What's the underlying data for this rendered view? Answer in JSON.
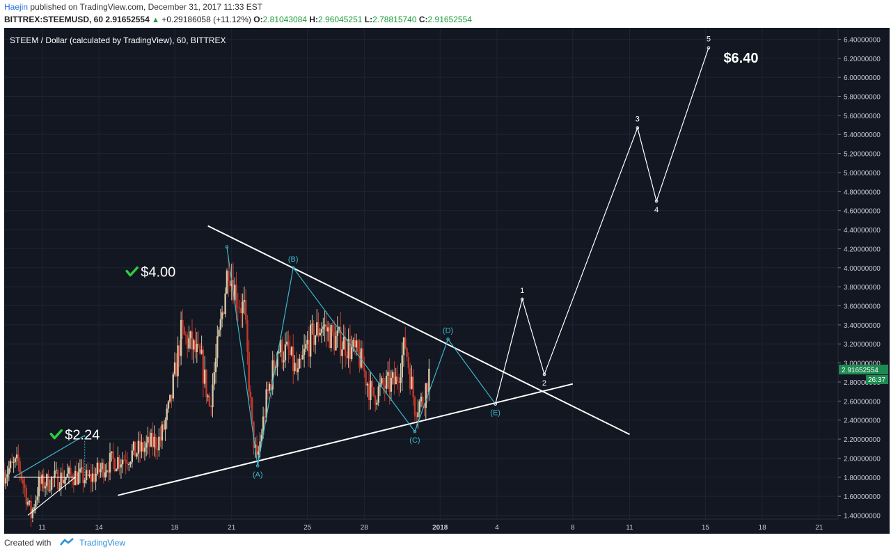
{
  "header": {
    "author": "Haejin",
    "published": "published on TradingView.com, December 31, 2017 11:33 EST",
    "symbol": "BITTREX:STEEMUSD, 60",
    "last": "2.91652554",
    "change": "+0.29186058 (+11.12%)",
    "o_label": "O:",
    "o_value": "2.81043084",
    "h_label": "H:",
    "h_value": "2.96045251",
    "l_label": "L:",
    "l_value": "2.78815740",
    "c_label": "C:",
    "c_value": "2.91652554"
  },
  "footer": {
    "created_with": "Created with",
    "brand": "TradingView"
  },
  "colors": {
    "background": "#131722",
    "grid": "#1e2433",
    "candle_up": "#d6c8a8",
    "candle_down": "#c0392b",
    "wave_abc": "#3bb9c9",
    "impulse": "#ffffff",
    "check": "#2ecc40",
    "price_tag": "#1e8a52"
  },
  "chart_data": {
    "type": "candlestick",
    "title": "STEEM / Dollar (calculated by TradingView), 60, BITTREX",
    "y_axis": {
      "min": 1.36,
      "max": 6.52,
      "ticks": [
        "6.40000000",
        "6.20000000",
        "6.00000000",
        "5.80000000",
        "5.60000000",
        "5.40000000",
        "5.20000000",
        "5.00000000",
        "4.80000000",
        "4.60000000",
        "4.40000000",
        "4.20000000",
        "4.00000000",
        "3.80000000",
        "3.60000000",
        "3.40000000",
        "3.20000000",
        "3.00000000",
        "2.80000000",
        "2.60000000",
        "2.40000000",
        "2.20000000",
        "2.00000000",
        "1.80000000",
        "1.60000000",
        "1.40000000"
      ]
    },
    "x_axis": {
      "range": [
        "2017-12-09",
        "2018-01-22"
      ],
      "ticks": [
        {
          "label": "11",
          "date": "2017-12-11"
        },
        {
          "label": "14",
          "date": "2017-12-14"
        },
        {
          "label": "18",
          "date": "2017-12-18"
        },
        {
          "label": "21",
          "date": "2017-12-21"
        },
        {
          "label": "25",
          "date": "2017-12-25"
        },
        {
          "label": "28",
          "date": "2017-12-28"
        },
        {
          "label": "2018",
          "date": "2018-01-01"
        },
        {
          "label": "4",
          "date": "2018-01-04"
        },
        {
          "label": "8",
          "date": "2018-01-08"
        },
        {
          "label": "11",
          "date": "2018-01-11"
        },
        {
          "label": "15",
          "date": "2018-01-15"
        },
        {
          "label": "18",
          "date": "2018-01-18"
        },
        {
          "label": "21",
          "date": "2018-01-21"
        }
      ]
    },
    "price_anchors": [
      {
        "x": "2017-12-09T00:00",
        "y": 1.85
      },
      {
        "x": "2017-12-09T18:00",
        "y": 1.95
      },
      {
        "x": "2017-12-10T10:00",
        "y": 1.4
      },
      {
        "x": "2017-12-10T20:00",
        "y": 1.72
      },
      {
        "x": "2017-12-11T16:00",
        "y": 1.78
      },
      {
        "x": "2017-12-12T16:00",
        "y": 1.82
      },
      {
        "x": "2017-12-13T12:00",
        "y": 1.78
      },
      {
        "x": "2017-12-14T12:00",
        "y": 1.95
      },
      {
        "x": "2017-12-15T12:00",
        "y": 2.02
      },
      {
        "x": "2017-12-16T12:00",
        "y": 2.12
      },
      {
        "x": "2017-12-17T06:00",
        "y": 2.2
      },
      {
        "x": "2017-12-17T18:00",
        "y": 2.55
      },
      {
        "x": "2017-12-18T08:00",
        "y": 3.3
      },
      {
        "x": "2017-12-18T20:00",
        "y": 3.2
      },
      {
        "x": "2017-12-19T10:00",
        "y": 3.0
      },
      {
        "x": "2017-12-19T20:00",
        "y": 2.55
      },
      {
        "x": "2017-12-20T08:00",
        "y": 3.25
      },
      {
        "x": "2017-12-20T20:00",
        "y": 4.05
      },
      {
        "x": "2017-12-21T06:00",
        "y": 3.7
      },
      {
        "x": "2017-12-21T16:00",
        "y": 3.55
      },
      {
        "x": "2017-12-22T02:00",
        "y": 2.3
      },
      {
        "x": "2017-12-22T08:00",
        "y": 1.95
      },
      {
        "x": "2017-12-22T20:00",
        "y": 2.6
      },
      {
        "x": "2017-12-23T10:00",
        "y": 3.15
      },
      {
        "x": "2017-12-24T00:00",
        "y": 3.1
      },
      {
        "x": "2017-12-24T12:00",
        "y": 2.85
      },
      {
        "x": "2017-12-25T00:00",
        "y": 3.2
      },
      {
        "x": "2017-12-25T18:00",
        "y": 3.4
      },
      {
        "x": "2017-12-26T10:00",
        "y": 3.25
      },
      {
        "x": "2017-12-27T00:00",
        "y": 3.2
      },
      {
        "x": "2017-12-27T18:00",
        "y": 3.05
      },
      {
        "x": "2017-12-28T10:00",
        "y": 2.65
      },
      {
        "x": "2017-12-29T00:00",
        "y": 2.75
      },
      {
        "x": "2017-12-29T16:00",
        "y": 2.8
      },
      {
        "x": "2017-12-30T04:00",
        "y": 3.2
      },
      {
        "x": "2017-12-30T16:00",
        "y": 2.55
      },
      {
        "x": "2017-12-31T02:00",
        "y": 2.6
      },
      {
        "x": "2017-12-31T11:00",
        "y": 2.92
      }
    ],
    "trendlines": [
      {
        "name": "upper",
        "from": {
          "x": "2017-12-19T18:00",
          "y": 4.44
        },
        "to": {
          "x": "2018-01-11T00:00",
          "y": 2.25
        }
      },
      {
        "name": "lower",
        "from": {
          "x": "2017-12-15T00:00",
          "y": 1.61
        },
        "to": {
          "x": "2018-01-08T00:00",
          "y": 2.78
        }
      }
    ],
    "waves": [
      {
        "name": "ABCDE",
        "points": [
          {
            "x": "2017-12-20T18:00",
            "y": 4.22,
            "label": ""
          },
          {
            "x": "2017-12-22T09:00",
            "y": 1.92,
            "label": "(A)"
          },
          {
            "x": "2017-12-24T06:00",
            "y": 4.0,
            "label": "(B)"
          },
          {
            "x": "2017-12-30T16:00",
            "y": 2.28,
            "label": "(C)"
          },
          {
            "x": "2018-01-01T10:00",
            "y": 3.25,
            "label": "(D)"
          },
          {
            "x": "2018-01-03T22:00",
            "y": 2.57,
            "label": "(E)"
          }
        ]
      },
      {
        "name": "impulse",
        "points": [
          {
            "x": "2018-01-03T22:00",
            "y": 2.57,
            "label": ""
          },
          {
            "x": "2018-01-05T08:00",
            "y": 3.67,
            "label": "1"
          },
          {
            "x": "2018-01-06T12:00",
            "y": 2.88,
            "label": "2"
          },
          {
            "x": "2018-01-11T10:00",
            "y": 5.47,
            "label": "3"
          },
          {
            "x": "2018-01-12T10:00",
            "y": 4.7,
            "label": "4"
          },
          {
            "x": "2018-01-15T04:00",
            "y": 6.31,
            "label": "5"
          }
        ]
      }
    ],
    "measure": {
      "start": {
        "x": "2017-12-09T12:00",
        "y": 1.8
      },
      "end": {
        "x": "2017-12-13T06:00",
        "y": 2.24
      },
      "base_end": {
        "x": "2017-12-12T18:00",
        "y": 1.8
      },
      "rise_start": {
        "x": "2017-12-10T06:00",
        "y": 1.4
      }
    },
    "annotations": [
      {
        "text": "$4.00",
        "check": true,
        "x": "2017-12-16T12:00",
        "y": 3.95
      },
      {
        "text": "$2.24",
        "check": true,
        "x": "2017-12-12T12:00",
        "y": 2.24
      },
      {
        "text": "$6.40",
        "check": false,
        "x": "2018-01-16T06:00",
        "y": 6.2
      }
    ],
    "last_price": {
      "value": "2.91652554",
      "countdown": "26:37"
    }
  }
}
